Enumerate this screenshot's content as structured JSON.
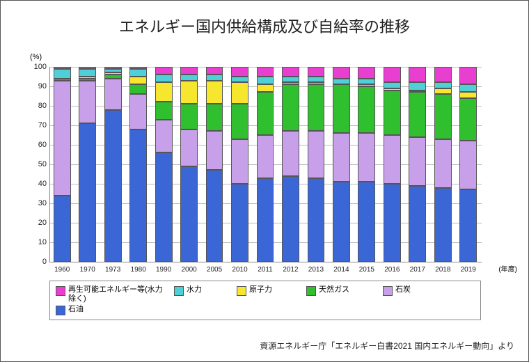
{
  "title": "エネルギー国内供給構成及び自給率の推移",
  "y_unit": "(%)",
  "x_unit": "(年度)",
  "source": "資源エネルギー庁「エネルギー白書2021 国内エネルギー動向」より",
  "chart": {
    "type": "stacked-bar",
    "ylim_max": 100,
    "ytick_step": 10,
    "grid_color": "#bbbbbb",
    "axis_color": "#888888",
    "background": "#ffffff",
    "years": [
      "1960",
      "1970",
      "1973",
      "1980",
      "1990",
      "2000",
      "2005",
      "2010",
      "2011",
      "2012",
      "2013",
      "2014",
      "2015",
      "2016",
      "2017",
      "2018",
      "2019"
    ],
    "series": [
      {
        "key": "oil",
        "label": "石油",
        "color": "#3b66d6"
      },
      {
        "key": "coal",
        "label": "石炭",
        "color": "#c8a0ea"
      },
      {
        "key": "gas",
        "label": "天然ガス",
        "color": "#2fbf2f"
      },
      {
        "key": "nuclear",
        "label": "原子力",
        "color": "#f7e62e"
      },
      {
        "key": "hydro",
        "label": "水力",
        "color": "#4fd0d6"
      },
      {
        "key": "renewable",
        "label": "再生可能エネルギー等(水力除く)",
        "color": "#e83fd0"
      }
    ],
    "data": {
      "oil": [
        34,
        71,
        78,
        68,
        56,
        49,
        47,
        40,
        43,
        44,
        43,
        41,
        41,
        40,
        39,
        38,
        37
      ],
      "coal": [
        59,
        22,
        16,
        18,
        17,
        19,
        20,
        23,
        22,
        23,
        24,
        25,
        25,
        25,
        25,
        25,
        25
      ],
      "gas": [
        1,
        1,
        2,
        5,
        9,
        13,
        14,
        18,
        22,
        24,
        24,
        25,
        24,
        23,
        23,
        23,
        22
      ],
      "nuclear": [
        0,
        1,
        1,
        4,
        10,
        12,
        12,
        11,
        4,
        1,
        1,
        0,
        1,
        1,
        1,
        3,
        3
      ],
      "hydro": [
        5,
        4,
        2,
        4,
        4,
        3,
        3,
        3,
        4,
        3,
        3,
        3,
        3,
        3,
        4,
        3,
        4
      ],
      "renewable": [
        1,
        1,
        1,
        1,
        4,
        4,
        4,
        5,
        5,
        5,
        5,
        6,
        6,
        8,
        8,
        8,
        9
      ]
    }
  },
  "legend_order": [
    "renewable",
    "hydro",
    "nuclear",
    "gas",
    "coal",
    "oil"
  ],
  "legend_widths": {
    "renewable": 160,
    "hydro": 80,
    "nuclear": 90,
    "gas": 100,
    "coal": 80,
    "oil": 80
  }
}
